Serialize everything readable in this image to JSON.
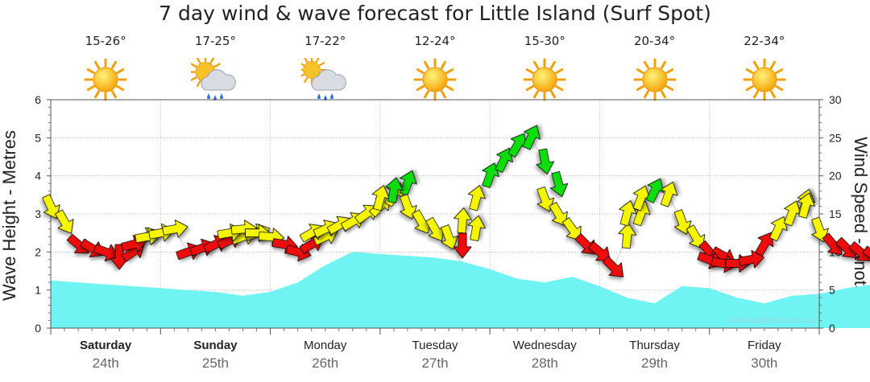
{
  "chart_data": {
    "type": "area",
    "title": "7 day wind & wave forecast for Little Island (Surf Spot)",
    "ylabel": "Wave Height - Metres",
    "y2label": "Wind Speed - Knots",
    "ylim": [
      0,
      6
    ],
    "y2lim": [
      0,
      30
    ],
    "yticks": [
      "0",
      "1",
      "2",
      "3",
      "4",
      "5",
      "6"
    ],
    "y2ticks": [
      "0",
      "5",
      "10",
      "15",
      "20",
      "25",
      "30"
    ],
    "watermark": "www.seabreeze.com.au",
    "days": [
      {
        "name": "Saturday",
        "date": "24th",
        "temp": "15-26°",
        "icon": "sun",
        "bold": true
      },
      {
        "name": "Sunday",
        "date": "25th",
        "temp": "17-25°",
        "icon": "sun-rain",
        "bold": true
      },
      {
        "name": "Monday",
        "date": "26th",
        "temp": "17-22°",
        "icon": "cloud-rain",
        "bold": false
      },
      {
        "name": "Tuesday",
        "date": "27th",
        "temp": "12-24°",
        "icon": "sun",
        "bold": false
      },
      {
        "name": "Wednesday",
        "date": "28th",
        "temp": "15-30°",
        "icon": "sun",
        "bold": false
      },
      {
        "name": "Thursday",
        "date": "29th",
        "temp": "20-34°",
        "icon": "sun",
        "bold": false
      },
      {
        "name": "Friday",
        "date": "30th",
        "temp": "22-34°",
        "icon": "sun",
        "bold": false
      }
    ],
    "wave_height_m": [
      [
        0,
        1.25
      ],
      [
        0.25,
        1.2
      ],
      [
        0.5,
        1.15
      ],
      [
        0.75,
        1.1
      ],
      [
        1,
        1.05
      ],
      [
        1.25,
        1.0
      ],
      [
        1.5,
        0.95
      ],
      [
        1.75,
        0.85
      ],
      [
        2,
        0.95
      ],
      [
        2.25,
        1.2
      ],
      [
        2.5,
        1.65
      ],
      [
        2.75,
        2.0
      ],
      [
        3,
        1.95
      ],
      [
        3.25,
        1.9
      ],
      [
        3.5,
        1.85
      ],
      [
        3.75,
        1.75
      ],
      [
        4,
        1.55
      ],
      [
        4.25,
        1.3
      ],
      [
        4.5,
        1.2
      ],
      [
        4.75,
        1.35
      ],
      [
        5,
        1.1
      ],
      [
        5.25,
        0.8
      ],
      [
        5.5,
        0.65
      ],
      [
        5.75,
        1.1
      ],
      [
        6,
        1.05
      ],
      [
        6.25,
        0.8
      ],
      [
        6.5,
        0.65
      ],
      [
        6.75,
        0.85
      ],
      [
        7,
        0.9
      ],
      [
        7.25,
        1.05
      ],
      [
        7.5,
        1.15
      ],
      [
        7.75,
        1.25
      ],
      [
        8,
        1.45
      ],
      [
        8.25,
        1.65
      ],
      [
        8.5,
        1.25
      ]
    ],
    "wind_series": [
      {
        "name": "wind-day-1",
        "points": [
          {
            "t": 0.0,
            "kts": 16.0,
            "dir_deg": 155
          },
          {
            "t": 0.125,
            "kts": 14.0,
            "dir_deg": 150
          },
          {
            "t": 0.25,
            "kts": 11.0,
            "dir_deg": 130
          },
          {
            "t": 0.375,
            "kts": 10.5,
            "dir_deg": 120
          },
          {
            "t": 0.5,
            "kts": 10.0,
            "dir_deg": 110
          },
          {
            "t": 0.625,
            "kts": 9.5,
            "dir_deg": 180
          },
          {
            "t": 0.75,
            "kts": 10.0,
            "dir_deg": 55
          },
          {
            "t": 0.875,
            "kts": 12.0,
            "dir_deg": 65
          }
        ]
      },
      {
        "name": "wind-day-2",
        "points": [
          {
            "t": 0.75,
            "kts": 11.0,
            "dir_deg": 75
          },
          {
            "t": 0.875,
            "kts": 12.0,
            "dir_deg": 80
          },
          {
            "t": 1.0,
            "kts": 12.5,
            "dir_deg": 80
          },
          {
            "t": 1.125,
            "kts": 13.0,
            "dir_deg": 80
          },
          {
            "t": 1.25,
            "kts": 10.0,
            "dir_deg": 70
          },
          {
            "t": 1.375,
            "kts": 10.5,
            "dir_deg": 70
          },
          {
            "t": 1.5,
            "kts": 11.0,
            "dir_deg": 65
          },
          {
            "t": 1.625,
            "kts": 11.5,
            "dir_deg": 65
          },
          {
            "t": 1.75,
            "kts": 12.0,
            "dir_deg": 70
          },
          {
            "t": 1.875,
            "kts": 12.5,
            "dir_deg": 70
          }
        ]
      },
      {
        "name": "wind-day-3",
        "points": [
          {
            "t": 1.625,
            "kts": 12.5,
            "dir_deg": 80
          },
          {
            "t": 1.75,
            "kts": 13.0,
            "dir_deg": 85
          },
          {
            "t": 1.875,
            "kts": 12.5,
            "dir_deg": 90
          },
          {
            "t": 2.0,
            "kts": 12.0,
            "dir_deg": 95
          },
          {
            "t": 2.125,
            "kts": 11.0,
            "dir_deg": 100
          },
          {
            "t": 2.25,
            "kts": 10.0,
            "dir_deg": 105
          },
          {
            "t": 2.375,
            "kts": 11.0,
            "dir_deg": 60
          },
          {
            "t": 2.5,
            "kts": 12.0,
            "dir_deg": 65
          }
        ]
      },
      {
        "name": "wind-day-4",
        "points": [
          {
            "t": 2.375,
            "kts": 12.5,
            "dir_deg": 60
          },
          {
            "t": 2.5,
            "kts": 13.0,
            "dir_deg": 65
          },
          {
            "t": 2.625,
            "kts": 13.5,
            "dir_deg": 60
          },
          {
            "t": 2.75,
            "kts": 14.0,
            "dir_deg": 60
          },
          {
            "t": 2.875,
            "kts": 15.0,
            "dir_deg": 55
          },
          {
            "t": 3.0,
            "kts": 16.0,
            "dir_deg": 45
          },
          {
            "t": 3.125,
            "kts": 17.5,
            "dir_deg": 30
          },
          {
            "t": 3.25,
            "kts": 19.0,
            "dir_deg": 20
          }
        ]
      },
      {
        "name": "wind-day-5",
        "points": [
          {
            "t": 3.0,
            "kts": 17.0,
            "dir_deg": 15
          },
          {
            "t": 3.125,
            "kts": 18.0,
            "dir_deg": 10
          },
          {
            "t": 3.25,
            "kts": 16.0,
            "dir_deg": 160
          },
          {
            "t": 3.375,
            "kts": 14.0,
            "dir_deg": 150
          },
          {
            "t": 3.5,
            "kts": 13.0,
            "dir_deg": 150
          },
          {
            "t": 3.625,
            "kts": 12.0,
            "dir_deg": 160
          },
          {
            "t": 3.75,
            "kts": 11.0,
            "dir_deg": 180
          },
          {
            "t": 3.875,
            "kts": 13.0,
            "dir_deg": 10
          }
        ]
      },
      {
        "name": "wind-day-6",
        "points": [
          {
            "t": 3.75,
            "kts": 14.0,
            "dir_deg": 5
          },
          {
            "t": 3.875,
            "kts": 17.0,
            "dir_deg": 15
          },
          {
            "t": 4.0,
            "kts": 20.0,
            "dir_deg": 20
          },
          {
            "t": 4.125,
            "kts": 22.0,
            "dir_deg": 25
          },
          {
            "t": 4.25,
            "kts": 24.0,
            "dir_deg": 30
          },
          {
            "t": 4.375,
            "kts": 25.0,
            "dir_deg": 25
          },
          {
            "t": 4.5,
            "kts": 22.0,
            "dir_deg": 170
          },
          {
            "t": 4.625,
            "kts": 19.0,
            "dir_deg": 165
          }
        ]
      },
      {
        "name": "wind-day-7",
        "points": [
          {
            "t": 4.5,
            "kts": 17.0,
            "dir_deg": 160
          },
          {
            "t": 4.625,
            "kts": 15.0,
            "dir_deg": 150
          },
          {
            "t": 4.75,
            "kts": 13.0,
            "dir_deg": 145
          },
          {
            "t": 4.875,
            "kts": 11.0,
            "dir_deg": 135
          },
          {
            "t": 5.0,
            "kts": 10.0,
            "dir_deg": 130
          },
          {
            "t": 5.125,
            "kts": 8.0,
            "dir_deg": 135
          },
          {
            "t": 5.25,
            "kts": 12.0,
            "dir_deg": 5
          },
          {
            "t": 5.375,
            "kts": 15.0,
            "dir_deg": 20
          }
        ]
      },
      {
        "name": "wind-day-8",
        "points": [
          {
            "t": 5.25,
            "kts": 15.0,
            "dir_deg": 15
          },
          {
            "t": 5.375,
            "kts": 17.0,
            "dir_deg": 20
          },
          {
            "t": 5.5,
            "kts": 18.0,
            "dir_deg": 25
          },
          {
            "t": 5.625,
            "kts": 17.5,
            "dir_deg": 20
          },
          {
            "t": 5.75,
            "kts": 14.0,
            "dir_deg": 160
          },
          {
            "t": 5.875,
            "kts": 12.0,
            "dir_deg": 150
          },
          {
            "t": 6.0,
            "kts": 10.0,
            "dir_deg": 140
          },
          {
            "t": 6.125,
            "kts": 9.5,
            "dir_deg": 120
          }
        ]
      },
      {
        "name": "wind-day-9",
        "points": [
          {
            "t": 6.0,
            "kts": 9.0,
            "dir_deg": 110
          },
          {
            "t": 6.125,
            "kts": 8.5,
            "dir_deg": 100
          },
          {
            "t": 6.25,
            "kts": 8.5,
            "dir_deg": 90
          },
          {
            "t": 6.375,
            "kts": 9.0,
            "dir_deg": 80
          },
          {
            "t": 6.5,
            "kts": 11.0,
            "dir_deg": 30
          },
          {
            "t": 6.625,
            "kts": 13.0,
            "dir_deg": 25
          },
          {
            "t": 6.75,
            "kts": 15.0,
            "dir_deg": 20
          },
          {
            "t": 6.875,
            "kts": 16.5,
            "dir_deg": 15
          }
        ]
      },
      {
        "name": "wind-day-10",
        "points": [
          {
            "t": 6.875,
            "kts": 16.0,
            "dir_deg": 15
          },
          {
            "t": 7.0,
            "kts": 13.0,
            "dir_deg": 160
          },
          {
            "t": 7.125,
            "kts": 11.0,
            "dir_deg": 140
          },
          {
            "t": 7.25,
            "kts": 10.5,
            "dir_deg": 135
          },
          {
            "t": 7.375,
            "kts": 10.0,
            "dir_deg": 130
          },
          {
            "t": 7.5,
            "kts": 9.5,
            "dir_deg": 125
          },
          {
            "t": 7.625,
            "kts": 10.0,
            "dir_deg": 120
          },
          {
            "t": 7.75,
            "kts": 9.0,
            "dir_deg": 115
          }
        ]
      },
      {
        "name": "wind-day-11",
        "points": [
          {
            "t": 7.75,
            "kts": 10.0,
            "dir_deg": 110
          },
          {
            "t": 7.875,
            "kts": 10.5,
            "dir_deg": 100
          },
          {
            "t": 8.0,
            "kts": 13.0,
            "dir_deg": 30
          },
          {
            "t": 8.125,
            "kts": 15.0,
            "dir_deg": 25
          },
          {
            "t": 8.25,
            "kts": 17.0,
            "dir_deg": 20
          },
          {
            "t": 8.375,
            "kts": 19.0,
            "dir_deg": 25
          },
          {
            "t": 8.5,
            "kts": 16.0,
            "dir_deg": 160
          },
          {
            "t": 8.625,
            "kts": 13.0,
            "dir_deg": 150
          }
        ]
      }
    ],
    "wind_color_scale": {
      "light": "#ee1111",
      "moderate": "#f5f500",
      "strong": "#11dd11"
    }
  }
}
